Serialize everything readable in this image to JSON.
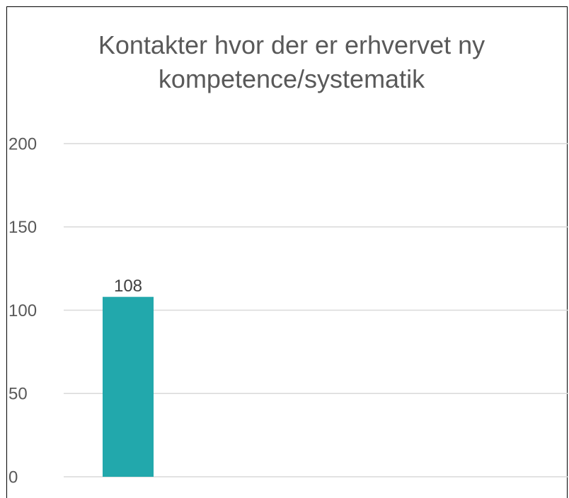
{
  "chart_data": {
    "type": "bar",
    "title": "Kontakter hvor der er erhvervet ny kompetence/systematik",
    "categories": [
      null
    ],
    "values": [
      108
    ],
    "color": "#22a8ac",
    "ylim": [
      0,
      200
    ],
    "yticks": [
      0,
      50,
      100,
      150,
      200
    ],
    "grid": true
  }
}
